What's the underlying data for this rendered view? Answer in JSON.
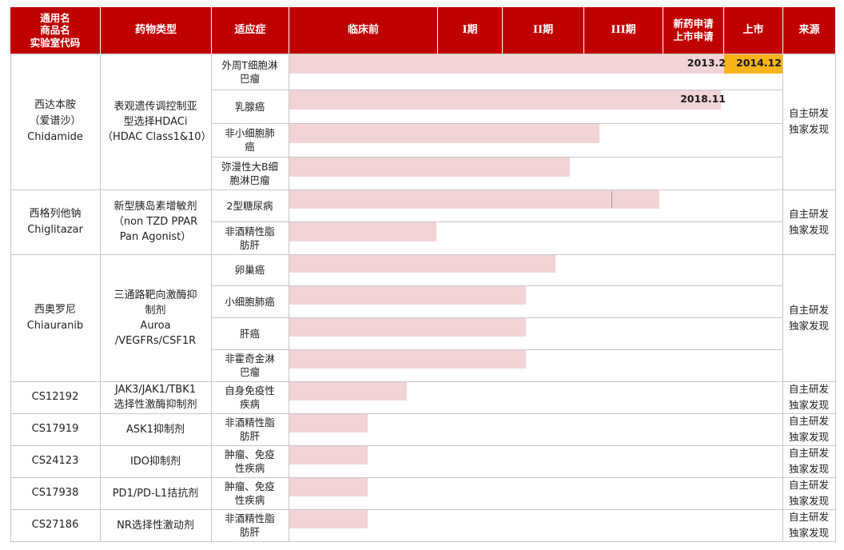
{
  "headers": {
    "name_lines": [
      "通用名",
      "商品名",
      "实验室代码"
    ],
    "type": "药物类型",
    "indication": "适应症",
    "preclinical": "临床前",
    "phase1": "I期",
    "phase2": "II期",
    "phase3": "III期",
    "nda_lines": [
      "新药申请",
      "上市申请"
    ],
    "launch": "上市",
    "source": "来源"
  },
  "drugs": [
    {
      "name": "西达本胺\n（爱谱沙）\nChidamide",
      "type": "表观遗传调控制亚\n型选择HDACi\n（HDAC Class1&10）",
      "source": "自主研发\n独家发现"
    },
    {
      "name": "西格列他钠\nChiglitazar",
      "type": "新型胰岛素增敏剂\n（non TZD PPAR\nPan Agonist）",
      "source": "自主研发\n独家发现"
    },
    {
      "name": "西奥罗尼\nChiauranib",
      "type": "三通路靶向激酶抑\n制剂\nAuroa\n/VEGFRs/CSF1R",
      "source": "自主研发\n独家发现"
    },
    {
      "name": "CS12192",
      "type": "JAK3/JAK1/TBK1\n选择性激酶抑制剂",
      "source": "自主研发\n独家发现"
    },
    {
      "name": "CS17919",
      "type": "ASK1抑制剂",
      "source": "自主研发\n独家发现"
    },
    {
      "name": "CS24123",
      "type": "IDO抑制剂",
      "source": "自主研发\n独家发现"
    },
    {
      "name": "CS17938",
      "type": "PD1/PD-L1拮抗剂",
      "source": "自主研发\n独家发现"
    },
    {
      "name": "CS27186",
      "type": "NR选择性激动剂",
      "source": "自主研发\n独家发现"
    }
  ],
  "pipeline": [
    {
      "indication": "外周T细胞淋\n巴瘤",
      "stage": "上市",
      "progress": 1.0,
      "nda_date": "2013.2",
      "launch_date": "2014.12"
    },
    {
      "indication": "乳腺癌",
      "stage": "新药申请/上市申请",
      "progress": 0.875,
      "nda_date": "2018.11"
    },
    {
      "indication": "非小细胞肺\n癌",
      "stage": "III期",
      "progress": 0.63
    },
    {
      "indication": "弥漫性大B细\n胞淋巴瘤",
      "stage": "III期",
      "progress": 0.57
    },
    {
      "indication": "2型糖尿病",
      "stage": "新药申请/上市申请",
      "progress": 0.75
    },
    {
      "indication": "非酒精性脂\n肪肝",
      "stage": "I期",
      "progress": 0.3
    },
    {
      "indication": "卵巢癌",
      "stage": "II期",
      "progress": 0.54
    },
    {
      "indication": "小细胞肺癌",
      "stage": "II期",
      "progress": 0.48
    },
    {
      "indication": "肝癌",
      "stage": "II期",
      "progress": 0.48
    },
    {
      "indication": "非霍奇金淋\n巴瘤",
      "stage": "II期",
      "progress": 0.48
    },
    {
      "indication": "自身免疫性\n疾病",
      "stage": "临床前",
      "progress": 0.24
    },
    {
      "indication": "非酒精性脂\n肪肝",
      "stage": "临床前",
      "progress": 0.16
    },
    {
      "indication": "肿瘤、免疫\n性疾病",
      "stage": "临床前",
      "progress": 0.16
    },
    {
      "indication": "肿瘤、免疫\n性疾病",
      "stage": "临床前",
      "progress": 0.16
    },
    {
      "indication": "非酒精性脂\n肪肝",
      "stage": "临床前",
      "progress": 0.16
    }
  ],
  "colors": {
    "header_bg": "#c00000",
    "header_text": "#ffffff",
    "bar": "#f2d4d6",
    "launch_highlight": "#f7b318",
    "grid": "#c8c8c8"
  }
}
